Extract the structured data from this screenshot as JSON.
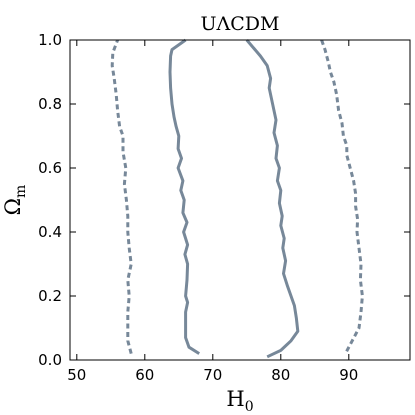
{
  "chart_data": {
    "type": "line",
    "title": "UΛCDM",
    "xlabel": {
      "base": "H",
      "sub": "0"
    },
    "ylabel": {
      "base": "Ω",
      "sub": "m"
    },
    "xlim": [
      49,
      99
    ],
    "ylim": [
      0.0,
      1.0
    ],
    "x_ticks": [
      "50",
      "60",
      "70",
      "80",
      "90"
    ],
    "x_tick_values": [
      50,
      60,
      70,
      80,
      90
    ],
    "y_ticks": [
      "0.0",
      "0.2",
      "0.4",
      "0.6",
      "0.8",
      "1.0"
    ],
    "y_tick_values": [
      0.0,
      0.2,
      0.4,
      0.6,
      0.8,
      1.0
    ],
    "grid": false,
    "color": "#778899",
    "series": [
      {
        "style": "dashed",
        "points": [
          [
            58.0,
            0.02
          ],
          [
            57.5,
            0.06
          ],
          [
            57.5,
            0.1
          ],
          [
            57.5,
            0.15
          ],
          [
            57.7,
            0.2
          ],
          [
            57.5,
            0.25
          ],
          [
            58.0,
            0.3
          ],
          [
            57.7,
            0.35
          ],
          [
            57.5,
            0.4
          ],
          [
            57.5,
            0.45
          ],
          [
            57.3,
            0.5
          ],
          [
            57.0,
            0.55
          ],
          [
            57.2,
            0.6
          ],
          [
            56.8,
            0.65
          ],
          [
            56.8,
            0.7
          ],
          [
            56.3,
            0.73
          ],
          [
            56.0,
            0.78
          ],
          [
            55.8,
            0.83
          ],
          [
            55.5,
            0.88
          ],
          [
            55.2,
            0.92
          ],
          [
            55.3,
            0.96
          ],
          [
            56.0,
            1.0
          ]
        ]
      },
      {
        "style": "solid",
        "points": [
          [
            68.0,
            0.02
          ],
          [
            66.5,
            0.04
          ],
          [
            66.0,
            0.07
          ],
          [
            66.0,
            0.1
          ],
          [
            66.0,
            0.15
          ],
          [
            66.3,
            0.18
          ],
          [
            66.0,
            0.2
          ],
          [
            66.2,
            0.25
          ],
          [
            66.3,
            0.3
          ],
          [
            65.9,
            0.33
          ],
          [
            66.3,
            0.36
          ],
          [
            65.7,
            0.4
          ],
          [
            66.2,
            0.43
          ],
          [
            65.6,
            0.46
          ],
          [
            65.8,
            0.5
          ],
          [
            65.3,
            0.53
          ],
          [
            65.6,
            0.56
          ],
          [
            64.9,
            0.6
          ],
          [
            65.4,
            0.63
          ],
          [
            64.9,
            0.66
          ],
          [
            65.0,
            0.7
          ],
          [
            64.6,
            0.73
          ],
          [
            64.3,
            0.76
          ],
          [
            64.0,
            0.8
          ],
          [
            63.8,
            0.85
          ],
          [
            63.7,
            0.9
          ],
          [
            63.8,
            0.95
          ],
          [
            64.0,
            0.97
          ],
          [
            66.0,
            1.0
          ]
        ]
      },
      {
        "style": "solid",
        "points": [
          [
            75.0,
            1.0
          ],
          [
            77.0,
            0.95
          ],
          [
            78.0,
            0.92
          ],
          [
            78.5,
            0.88
          ],
          [
            78.3,
            0.85
          ],
          [
            78.8,
            0.8
          ],
          [
            79.3,
            0.75
          ],
          [
            79.0,
            0.71
          ],
          [
            79.5,
            0.67
          ],
          [
            79.3,
            0.63
          ],
          [
            79.8,
            0.6
          ],
          [
            79.5,
            0.56
          ],
          [
            80.0,
            0.53
          ],
          [
            79.8,
            0.49
          ],
          [
            80.2,
            0.45
          ],
          [
            80.0,
            0.42
          ],
          [
            80.5,
            0.38
          ],
          [
            80.3,
            0.35
          ],
          [
            80.7,
            0.31
          ],
          [
            80.4,
            0.27
          ],
          [
            81.0,
            0.23
          ],
          [
            81.5,
            0.2
          ],
          [
            82.0,
            0.17
          ],
          [
            82.3,
            0.13
          ],
          [
            82.5,
            0.09
          ],
          [
            81.5,
            0.06
          ],
          [
            80.0,
            0.03
          ],
          [
            78.0,
            0.01
          ]
        ]
      },
      {
        "style": "dashed",
        "points": [
          [
            86.0,
            1.0
          ],
          [
            86.5,
            0.97
          ],
          [
            87.0,
            0.93
          ],
          [
            87.3,
            0.9
          ],
          [
            87.8,
            0.87
          ],
          [
            88.2,
            0.83
          ],
          [
            88.5,
            0.78
          ],
          [
            89.0,
            0.74
          ],
          [
            89.2,
            0.7
          ],
          [
            89.7,
            0.67
          ],
          [
            89.7,
            0.64
          ],
          [
            90.2,
            0.6
          ],
          [
            90.7,
            0.56
          ],
          [
            91.0,
            0.52
          ],
          [
            91.0,
            0.48
          ],
          [
            91.3,
            0.44
          ],
          [
            91.2,
            0.4
          ],
          [
            91.5,
            0.35
          ],
          [
            91.8,
            0.3
          ],
          [
            91.7,
            0.25
          ],
          [
            92.0,
            0.2
          ],
          [
            91.8,
            0.15
          ],
          [
            91.5,
            0.1
          ],
          [
            90.5,
            0.06
          ],
          [
            89.5,
            0.02
          ]
        ]
      }
    ]
  }
}
